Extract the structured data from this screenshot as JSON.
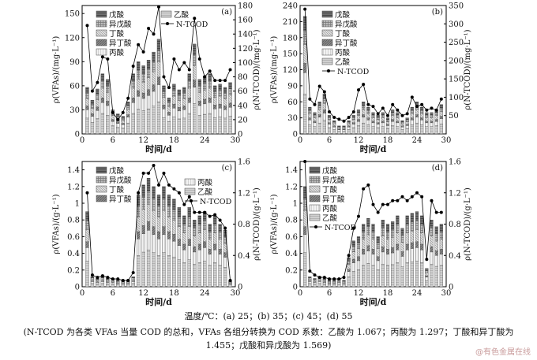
{
  "legend_labels": {
    "valeric": "戊酸",
    "isovaleric": "异戊酸",
    "butyric": "丁酸",
    "isobutyric": "异丁酸",
    "propionic": "丙酸",
    "acetic": "乙酸",
    "ntcod": "N-TCOD"
  },
  "colors": {
    "valeric": "#6e6e6e",
    "isovaleric": "#bdbdbd",
    "butyric": "#e2e2e2",
    "isobutyric": "#8a8a8a",
    "propionic": "#f2f2f2",
    "acetic": "#d0d0d0",
    "line": "#000000"
  },
  "caption": {
    "temperatures": "温度/℃：(a) 25；(b) 35；(c) 45；(d) 55",
    "note_line1": "(N-TCOD 为各类 VFAs 当量 COD 的总和，VFAs 各组分转换为 COD 系数：乙酸为 1.067；丙酸为 1.297；丁酸和异丁酸为",
    "note_line2": "1.455；戊酸和异戊酸为 1.569)"
  },
  "watermark": "@有色金属在线",
  "chart_data": [
    {
      "id": "a",
      "panel_label": "(a)",
      "type": "bar",
      "xlabel": "时间/d",
      "ylabel": "ρ(VFAs)/(mg·L⁻¹)",
      "ylabel_right": "ρ(N-TCOD)/(mg·L⁻¹)",
      "xticks": [
        0,
        6,
        12,
        18,
        24,
        30
      ],
      "ylim": [
        0,
        160
      ],
      "yticks": [
        0,
        30,
        60,
        90,
        120,
        150
      ],
      "ylim_right": [
        0,
        180
      ],
      "yticks_right": [
        0,
        20,
        40,
        60,
        80,
        100,
        120,
        140,
        160,
        180
      ],
      "legend_order": [
        "valeric",
        "isovaleric",
        "butyric",
        "isobutyric",
        "propionic",
        "acetic",
        "ntcod"
      ],
      "x": [
        1,
        2,
        3,
        4,
        5,
        6,
        7,
        8,
        9,
        10,
        11,
        12,
        13,
        14,
        15,
        16,
        17,
        18,
        19,
        20,
        21,
        22,
        23,
        24,
        25,
        26,
        27,
        28,
        29
      ],
      "bar_totals": [
        58,
        42,
        56,
        75,
        68,
        30,
        25,
        22,
        40,
        75,
        90,
        85,
        92,
        102,
        118,
        60,
        45,
        62,
        55,
        58,
        75,
        112,
        68,
        72,
        75,
        60,
        62,
        58,
        64
      ],
      "line": [
        152,
        60,
        72,
        108,
        105,
        30,
        20,
        30,
        50,
        95,
        125,
        115,
        148,
        140,
        178,
        80,
        65,
        105,
        90,
        100,
        90,
        162,
        105,
        80,
        88,
        75,
        75,
        75,
        90
      ]
    },
    {
      "id": "b",
      "panel_label": "(b)",
      "type": "bar",
      "xlabel": "时间/d",
      "ylabel": "ρ(VFAs)/(mg·L⁻¹)",
      "ylabel_right": "ρ(N-TCOD)/(mg·L⁻¹)",
      "xticks": [
        0,
        6,
        12,
        18,
        24,
        30
      ],
      "ylim": [
        0,
        240
      ],
      "yticks": [
        0,
        30,
        60,
        90,
        120,
        150,
        180,
        210,
        240
      ],
      "ylim_right": [
        0,
        350
      ],
      "yticks_right": [
        50,
        100,
        150,
        200,
        250,
        300,
        350
      ],
      "legend_order": [
        "valeric",
        "isovaleric",
        "butyric",
        "isobutyric",
        "propionic",
        "acetic",
        "ntcod"
      ],
      "x": [
        1,
        2,
        3,
        4,
        5,
        6,
        7,
        8,
        9,
        10,
        11,
        12,
        13,
        14,
        15,
        16,
        17,
        18,
        19,
        20,
        21,
        22,
        23,
        24,
        25,
        26,
        27,
        28,
        29
      ],
      "bar_totals": [
        220,
        50,
        40,
        60,
        75,
        35,
        25,
        15,
        15,
        25,
        35,
        45,
        60,
        50,
        40,
        35,
        40,
        30,
        45,
        40,
        25,
        30,
        50,
        60,
        50,
        40,
        40,
        45,
        55
      ],
      "line": [
        340,
        95,
        80,
        130,
        115,
        60,
        45,
        40,
        35,
        45,
        60,
        120,
        135,
        80,
        75,
        55,
        70,
        50,
        80,
        65,
        50,
        55,
        100,
        75,
        80,
        65,
        70,
        65,
        95
      ]
    },
    {
      "id": "c",
      "panel_label": "(c)",
      "type": "bar",
      "xlabel": "时间/d",
      "ylabel": "ρ(VFAs)/(g·L⁻¹)",
      "ylabel_right": "ρ(N-TCOD)/(g·L⁻¹)",
      "xticks": [
        0,
        6,
        12,
        18,
        24,
        30
      ],
      "ylim": [
        0,
        1.5
      ],
      "yticks": [
        0,
        0.2,
        0.4,
        0.6,
        0.8,
        1.0,
        1.2,
        1.4
      ],
      "ylim_right": [
        0,
        1.6
      ],
      "yticks_right": [
        0,
        0.4,
        0.8,
        1.2,
        1.6
      ],
      "legend_order": [
        "valeric",
        "isovaleric",
        "butyric",
        "isobutyric",
        "propionic",
        "acetic",
        "ntcod"
      ],
      "x": [
        1,
        2,
        3,
        4,
        5,
        6,
        7,
        8,
        9,
        10,
        11,
        12,
        13,
        14,
        15,
        16,
        17,
        18,
        19,
        20,
        21,
        22,
        23,
        24,
        25,
        26,
        27,
        28,
        29
      ],
      "bar_totals": [
        0.9,
        0.12,
        0.1,
        0.12,
        0.1,
        0.1,
        0.08,
        0.08,
        0.08,
        0.12,
        1.1,
        1.22,
        1.3,
        1.2,
        1.1,
        1.2,
        1.1,
        1.05,
        0.95,
        0.85,
        0.95,
        0.8,
        0.85,
        0.9,
        0.75,
        0.85,
        0.75,
        0.68,
        0.07
      ],
      "line": [
        1.2,
        0.15,
        0.12,
        0.14,
        0.12,
        0.1,
        0.1,
        0.08,
        0.08,
        0.18,
        1.2,
        1.45,
        1.45,
        1.55,
        1.3,
        1.45,
        1.3,
        1.25,
        1.2,
        1.05,
        1.15,
        0.95,
        0.95,
        0.95,
        0.9,
        0.92,
        0.85,
        0.75,
        0.08
      ]
    },
    {
      "id": "d",
      "panel_label": "(d)",
      "type": "bar",
      "xlabel": "时间/d",
      "ylabel": "ρ(VFAs)/(g·L⁻¹)",
      "ylabel_right": "ρ(N-TCOD)/(g·L⁻¹)",
      "xticks": [
        0,
        6,
        12,
        18,
        24,
        30
      ],
      "ylim": [
        0,
        1.5
      ],
      "yticks": [
        0,
        0.2,
        0.4,
        0.6,
        0.8,
        1.0,
        1.2,
        1.4
      ],
      "ylim_right": [
        0,
        1.6
      ],
      "yticks_right": [
        0,
        0.4,
        0.8,
        1.2,
        1.6
      ],
      "legend_order": [
        "valeric",
        "isovaleric",
        "butyric",
        "isobutyric",
        "propionic",
        "acetic",
        "ntcod"
      ],
      "x": [
        1,
        2,
        3,
        4,
        5,
        6,
        7,
        8,
        9,
        10,
        11,
        12,
        13,
        14,
        15,
        16,
        17,
        18,
        19,
        20,
        21,
        22,
        23,
        24,
        25,
        26,
        27,
        28,
        29
      ],
      "bar_totals": [
        1.2,
        0.12,
        0.1,
        0.12,
        0.1,
        0.08,
        0.08,
        0.1,
        0.08,
        0.35,
        0.55,
        0.6,
        0.75,
        0.82,
        0.75,
        0.6,
        0.8,
        0.75,
        0.78,
        0.85,
        0.7,
        0.85,
        0.88,
        0.9,
        0.85,
        0.22,
        0.8,
        0.72,
        0.75
      ],
      "line": [
        1.6,
        0.2,
        0.15,
        0.12,
        0.12,
        0.1,
        0.1,
        0.1,
        0.12,
        0.4,
        0.75,
        0.9,
        1.25,
        1.3,
        1.05,
        0.95,
        1.05,
        1.05,
        1.1,
        1.1,
        1.15,
        1.1,
        1.15,
        1.2,
        1.15,
        0.35,
        1.1,
        0.95,
        0.95
      ]
    }
  ]
}
